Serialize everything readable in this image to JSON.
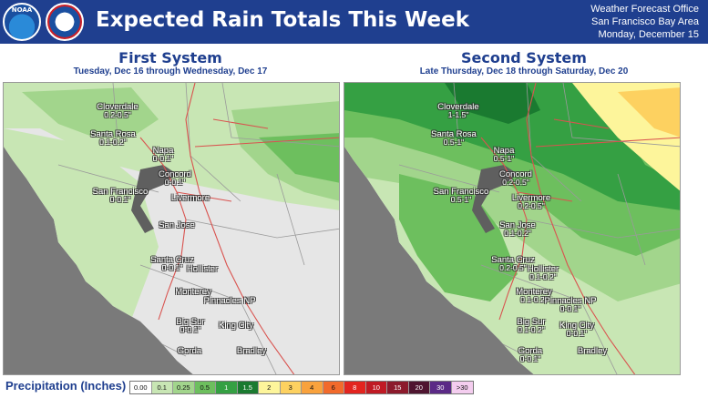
{
  "header": {
    "title": "Expected Rain Totals This Week",
    "logo_left": "NOAA",
    "logo_right": "NATIONAL WEATHER SERVICE",
    "office_lines": [
      "Weather Forecast Office",
      "San Francisco Bay Area",
      "Monday, December 15"
    ]
  },
  "panels": [
    {
      "title": "First System",
      "subtitle": "Tuesday, Dec 16 through Wednesday, Dec 17",
      "cities": [
        {
          "name": "Cloverdale",
          "value": "0.2-0.5\""
        },
        {
          "name": "Santa Rosa",
          "value": "0.1-0.2\""
        },
        {
          "name": "Napa",
          "value": "0-0.1\""
        },
        {
          "name": "Concord",
          "value": "0-0.1\""
        },
        {
          "name": "San Francisco",
          "value": "0-0.1\""
        },
        {
          "name": "Livermore",
          "value": ""
        },
        {
          "name": "San Jose",
          "value": ""
        },
        {
          "name": "Santa Cruz",
          "value": "0-0.1\""
        },
        {
          "name": "Hollister",
          "value": ""
        },
        {
          "name": "Monterey",
          "value": ""
        },
        {
          "name": "Pinnacles NP",
          "value": ""
        },
        {
          "name": "Big Sur",
          "value": "0-0.1\""
        },
        {
          "name": "King City",
          "value": ""
        },
        {
          "name": "Gorda",
          "value": ""
        },
        {
          "name": "Bradley",
          "value": ""
        }
      ]
    },
    {
      "title": "Second System",
      "subtitle": "Late Thursday, Dec 18 through Saturday, Dec 20",
      "cities": [
        {
          "name": "Cloverdale",
          "value": "1-1.5\""
        },
        {
          "name": "Santa Rosa",
          "value": "0.5-1\""
        },
        {
          "name": "Napa",
          "value": "0.5-1\""
        },
        {
          "name": "Concord",
          "value": "0.2-0.5\""
        },
        {
          "name": "San Francisco",
          "value": "0.5-1\""
        },
        {
          "name": "Livermore",
          "value": "0.2-0.5\""
        },
        {
          "name": "San Jose",
          "value": "0.1-0.2\""
        },
        {
          "name": "Santa Cruz",
          "value": "0.2-0.5\""
        },
        {
          "name": "Hollister",
          "value": "0.1-0.2\""
        },
        {
          "name": "Monterey",
          "value": "0.1-0.2\""
        },
        {
          "name": "Pinnacles NP",
          "value": "0-0.1\""
        },
        {
          "name": "Big Sur",
          "value": "0.1-0.2\""
        },
        {
          "name": "King City",
          "value": "0-0.1\""
        },
        {
          "name": "Gorda",
          "value": "0-0.1\""
        },
        {
          "name": "Bradley",
          "value": ""
        }
      ]
    }
  ],
  "legend": {
    "title": "Precipitation (Inches)",
    "bins": [
      {
        "label": "0.00",
        "color": "#ffffff"
      },
      {
        "label": "0.1",
        "color": "#c8e6b4"
      },
      {
        "label": "0.25",
        "color": "#a2d58c"
      },
      {
        "label": "0.5",
        "color": "#6dbf5e"
      },
      {
        "label": "1",
        "color": "#35a043"
      },
      {
        "label": "1.5",
        "color": "#1a7a30"
      },
      {
        "label": "2",
        "color": "#fdf59b"
      },
      {
        "label": "3",
        "color": "#fdd160"
      },
      {
        "label": "4",
        "color": "#f9a23d"
      },
      {
        "label": "6",
        "color": "#f26a2b"
      },
      {
        "label": "8",
        "color": "#e3241f"
      },
      {
        "label": "10",
        "color": "#c01a24"
      },
      {
        "label": "15",
        "color": "#8c1a2c"
      },
      {
        "label": "20",
        "color": "#4f1530"
      },
      {
        "label": "30",
        "color": "#5b2a86"
      },
      {
        "label": ">30",
        "color": "#f4cdef"
      }
    ]
  }
}
